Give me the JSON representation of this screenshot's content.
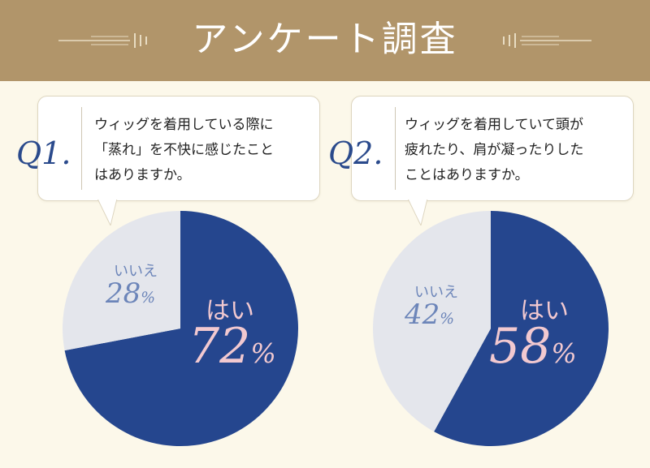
{
  "banner": {
    "title": "アンケート調査",
    "background_color": "#b1956a",
    "ornament_color": "#e8dcc2"
  },
  "page_background": "#fcf8ea",
  "questions": [
    {
      "label": "Q1.",
      "lines": [
        "ウィッグを着用している際に",
        "「蒸れ」を不快に感じたこと",
        "はありますか。"
      ]
    },
    {
      "label": "Q2.",
      "lines": [
        "ウィッグを着用していて頭が",
        "疲れたり、肩が凝ったりした",
        "ことはありますか。"
      ]
    }
  ],
  "chart_data": [
    {
      "type": "pie",
      "question": "Q1.",
      "slices": [
        {
          "label": "はい",
          "value": 72,
          "display": "72",
          "unit": "%",
          "color": "#25468e"
        },
        {
          "label": "いいえ",
          "value": 28,
          "display": "28",
          "unit": "%",
          "color": "#e4e6ec"
        }
      ]
    },
    {
      "type": "pie",
      "question": "Q2.",
      "slices": [
        {
          "label": "はい",
          "value": 58,
          "display": "58",
          "unit": "%",
          "color": "#25468e"
        },
        {
          "label": "いいえ",
          "value": 42,
          "display": "42",
          "unit": "%",
          "color": "#e4e6ec"
        }
      ]
    }
  ]
}
